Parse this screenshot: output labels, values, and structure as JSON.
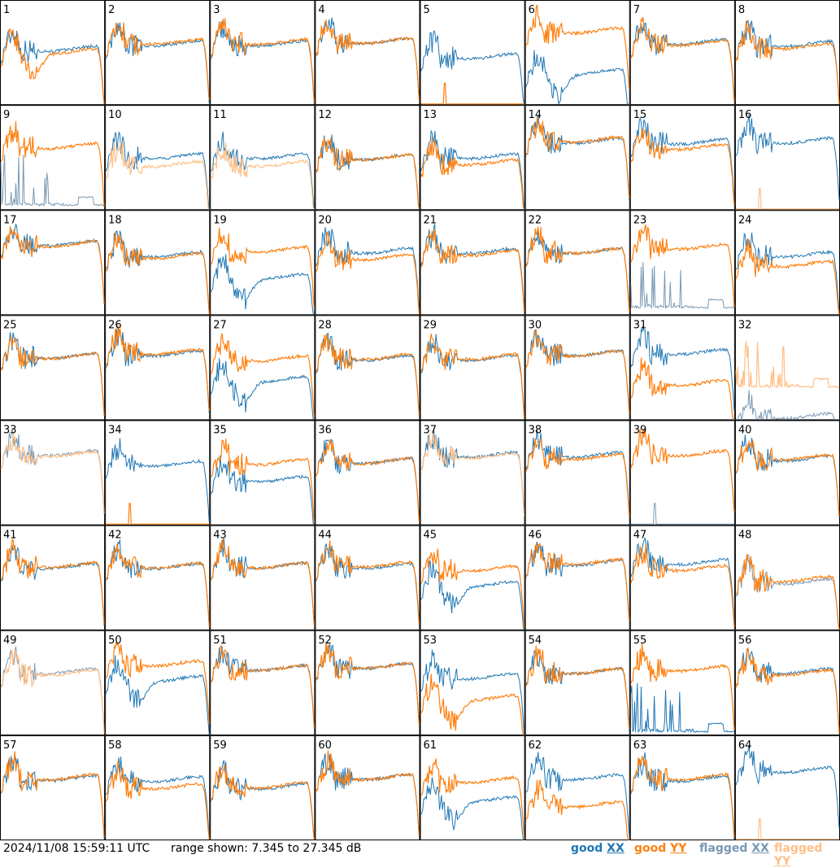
{
  "chart_data": {
    "type": "line",
    "title": "",
    "layout": "8x8 small multiples",
    "x_axis": "frequency channel (unlabeled)",
    "y_axis": "power (dB, unlabeled)",
    "ylim": [
      7.345,
      27.345
    ],
    "grid": false,
    "legend": "bottom-right",
    "series_styles": [
      {
        "name": "good XX",
        "color": "#1f77b4"
      },
      {
        "name": "good YY",
        "color": "#ff7f0e"
      },
      {
        "name": "flagged XX",
        "color": "#7a99b4"
      },
      {
        "name": "flagged YY",
        "color": "#ffbf87"
      }
    ],
    "panels": [
      {
        "id": "1",
        "xx": "good",
        "yy": "good",
        "xx_level": 17.5,
        "yy_level": 17.0,
        "yy_dip": true
      },
      {
        "id": "2",
        "xx": "good",
        "yy": "good",
        "xx_level": 18.5,
        "yy_level": 18.8
      },
      {
        "id": "3",
        "xx": "good",
        "yy": "good",
        "xx_level": 18.5,
        "yy_level": 18.8
      },
      {
        "id": "4",
        "xx": "good",
        "yy": "good",
        "xx_level": 19.0,
        "yy_level": 19.0
      },
      {
        "id": "5",
        "xx": "good",
        "yy": "good",
        "xx_level": 16.0,
        "yy_level": 7.4,
        "yy_dead": true
      },
      {
        "id": "6",
        "xx": "good",
        "yy": "good",
        "xx_level": 13.0,
        "yy_level": 21.0,
        "xx_dip": true
      },
      {
        "id": "7",
        "xx": "good",
        "yy": "good",
        "xx_level": 18.8,
        "yy_level": 18.6
      },
      {
        "id": "8",
        "xx": "good",
        "yy": "good",
        "xx_level": 18.4,
        "yy_level": 18.0
      },
      {
        "id": "9",
        "xx": "flagged",
        "yy": "good",
        "xx_level": 8.0,
        "yy_level": 19.0,
        "xx_spiky": true
      },
      {
        "id": "10",
        "xx": "good",
        "yy": "flagged",
        "xx_level": 17.0,
        "yy_level": 15.5
      },
      {
        "id": "11",
        "xx": "good",
        "yy": "flagged",
        "xx_level": 17.0,
        "yy_level": 15.5
      },
      {
        "id": "12",
        "xx": "good",
        "yy": "good",
        "xx_level": 16.8,
        "yy_level": 16.8
      },
      {
        "id": "13",
        "xx": "good",
        "yy": "good",
        "xx_level": 17.0,
        "yy_level": 15.8
      },
      {
        "id": "14",
        "xx": "good",
        "yy": "good",
        "xx_level": 20.0,
        "yy_level": 20.2
      },
      {
        "id": "15",
        "xx": "good",
        "yy": "good",
        "xx_level": 19.8,
        "yy_level": 18.8
      },
      {
        "id": "16",
        "xx": "good",
        "yy": "flagged",
        "xx_level": 20.0,
        "yy_level": 7.4,
        "yy_dead": true
      },
      {
        "id": "17",
        "xx": "good",
        "yy": "good",
        "xx_level": 20.5,
        "yy_level": 20.3
      },
      {
        "id": "18",
        "xx": "good",
        "yy": "good",
        "xx_level": 18.3,
        "yy_level": 18.0
      },
      {
        "id": "19",
        "xx": "good",
        "yy": "good",
        "xx_level": 14.0,
        "yy_level": 19.3,
        "xx_dip": true
      },
      {
        "id": "20",
        "xx": "good",
        "yy": "good",
        "xx_level": 19.0,
        "yy_level": 17.8
      },
      {
        "id": "21",
        "xx": "good",
        "yy": "good",
        "xx_level": 19.0,
        "yy_level": 18.6
      },
      {
        "id": "22",
        "xx": "good",
        "yy": "good",
        "xx_level": 19.0,
        "yy_level": 19.0
      },
      {
        "id": "23",
        "xx": "flagged",
        "yy": "good",
        "xx_level": 8.5,
        "yy_level": 19.8,
        "xx_spiky": true
      },
      {
        "id": "24",
        "xx": "good",
        "yy": "good",
        "xx_level": 18.3,
        "yy_level": 16.5
      },
      {
        "id": "25",
        "xx": "good",
        "yy": "good",
        "xx_level": 19.0,
        "yy_level": 19.0
      },
      {
        "id": "26",
        "xx": "good",
        "yy": "good",
        "xx_level": 19.5,
        "yy_level": 19.8
      },
      {
        "id": "27",
        "xx": "good",
        "yy": "good",
        "xx_level": 14.5,
        "yy_level": 18.5,
        "xx_dip": true
      },
      {
        "id": "28",
        "xx": "good",
        "yy": "good",
        "xx_level": 18.6,
        "yy_level": 18.8
      },
      {
        "id": "29",
        "xx": "good",
        "yy": "good",
        "xx_level": 18.6,
        "yy_level": 18.8
      },
      {
        "id": "30",
        "xx": "good",
        "yy": "good",
        "xx_level": 19.5,
        "yy_level": 19.5
      },
      {
        "id": "31",
        "xx": "good",
        "yy": "good",
        "xx_level": 19.8,
        "yy_level": 13.8
      },
      {
        "id": "32",
        "xx": "flagged",
        "yy": "flagged",
        "xx_level": 7.4,
        "yy_level": 13.5,
        "yy_spiky": true
      },
      {
        "id": "33",
        "xx": "flagged",
        "yy": "flagged",
        "xx_level": 20.5,
        "yy_level": 20.3
      },
      {
        "id": "34",
        "xx": "good",
        "yy": "good",
        "xx_level": 18.5,
        "yy_level": 7.4,
        "yy_dead": true
      },
      {
        "id": "35",
        "xx": "good",
        "yy": "good",
        "xx_level": 15.5,
        "yy_level": 18.8
      },
      {
        "id": "36",
        "xx": "good",
        "yy": "good",
        "xx_level": 19.0,
        "yy_level": 19.0
      },
      {
        "id": "37",
        "xx": "good",
        "yy": "flagged",
        "xx_level": 20.2,
        "yy_level": 20.0
      },
      {
        "id": "38",
        "xx": "good",
        "yy": "good",
        "xx_level": 20.2,
        "yy_level": 19.8
      },
      {
        "id": "39",
        "xx": "flagged",
        "yy": "good",
        "xx_level": 7.4,
        "yy_level": 20.5,
        "xx_dead": true
      },
      {
        "id": "40",
        "xx": "good",
        "yy": "good",
        "xx_level": 19.5,
        "yy_level": 19.7
      },
      {
        "id": "41",
        "xx": "good",
        "yy": "good",
        "xx_level": 19.0,
        "yy_level": 19.2
      },
      {
        "id": "42",
        "xx": "good",
        "yy": "good",
        "xx_level": 19.0,
        "yy_level": 19.1
      },
      {
        "id": "43",
        "xx": "good",
        "yy": "good",
        "xx_level": 19.1,
        "yy_level": 19.1
      },
      {
        "id": "44",
        "xx": "good",
        "yy": "good",
        "xx_level": 19.0,
        "yy_level": 19.3
      },
      {
        "id": "45",
        "xx": "good",
        "yy": "good",
        "xx_level": 15.5,
        "yy_level": 18.5,
        "xx_dip": true
      },
      {
        "id": "46",
        "xx": "good",
        "yy": "good",
        "xx_level": 19.6,
        "yy_level": 19.8
      },
      {
        "id": "47",
        "xx": "good",
        "yy": "good",
        "xx_level": 19.8,
        "yy_level": 18.6
      },
      {
        "id": "48",
        "xx": "flagged",
        "yy": "good",
        "xx_level": 16.0,
        "yy_level": 16.5
      },
      {
        "id": "49",
        "xx": "flagged",
        "yy": "flagged",
        "xx_level": 19.0,
        "yy_level": 18.7
      },
      {
        "id": "50",
        "xx": "good",
        "yy": "good",
        "xx_level": 17.5,
        "yy_level": 20.5,
        "xx_dip": true
      },
      {
        "id": "51",
        "xx": "good",
        "yy": "good",
        "xx_level": 19.6,
        "yy_level": 19.6
      },
      {
        "id": "52",
        "xx": "good",
        "yy": "good",
        "xx_level": 20.0,
        "yy_level": 20.0
      },
      {
        "id": "53",
        "xx": "good",
        "yy": "good",
        "xx_level": 18.0,
        "yy_level": 13.8,
        "yy_dip": true
      },
      {
        "id": "54",
        "xx": "good",
        "yy": "good",
        "xx_level": 19.0,
        "yy_level": 19.0
      },
      {
        "id": "55",
        "xx": "good",
        "yy": "good",
        "xx_level": 7.8,
        "yy_level": 19.5,
        "xx_spiky": true
      },
      {
        "id": "56",
        "xx": "good",
        "yy": "good",
        "xx_level": 19.0,
        "yy_level": 18.7
      },
      {
        "id": "57",
        "xx": "good",
        "yy": "good",
        "xx_level": 18.6,
        "yy_level": 18.8
      },
      {
        "id": "58",
        "xx": "good",
        "yy": "good",
        "xx_level": 18.4,
        "yy_level": 17.0
      },
      {
        "id": "59",
        "xx": "good",
        "yy": "good",
        "xx_level": 17.0,
        "yy_level": 17.2
      },
      {
        "id": "60",
        "xx": "good",
        "yy": "good",
        "xx_level": 18.8,
        "yy_level": 18.8
      },
      {
        "id": "61",
        "xx": "good",
        "yy": "good",
        "xx_level": 14.5,
        "yy_level": 18.2,
        "xx_dip": true
      },
      {
        "id": "62",
        "xx": "good",
        "yy": "good",
        "xx_level": 18.8,
        "yy_level": 13.5
      },
      {
        "id": "63",
        "xx": "good",
        "yy": "good",
        "xx_level": 18.5,
        "yy_level": 18.8
      },
      {
        "id": "64",
        "xx": "good",
        "yy": "flagged",
        "xx_level": 20.2,
        "yy_level": 7.4,
        "yy_dead": true
      }
    ]
  },
  "footer": {
    "timestamp": "2024/11/08 15:59:11 UTC",
    "range_text": "range shown: 7.345 to 27.345 dB",
    "legend": [
      {
        "status": "good",
        "pol": "XX",
        "color": "#1f77b4"
      },
      {
        "status": "good",
        "pol": "YY",
        "color": "#ff7f0e"
      },
      {
        "status": "flagged",
        "pol": "XX",
        "color": "#7a99b4"
      },
      {
        "status": "flagged",
        "pol": "YY",
        "color": "#ffbf87"
      }
    ]
  }
}
